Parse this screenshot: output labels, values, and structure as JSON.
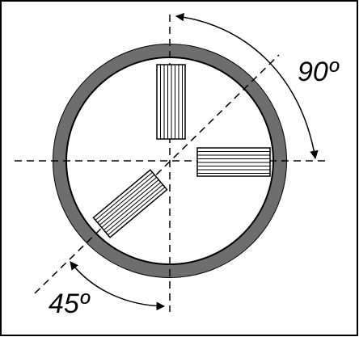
{
  "diagram": {
    "labels": {
      "angle_top": "90º",
      "angle_bottom": "45º"
    },
    "colors": {
      "ring": "#6e6e6e",
      "stroke": "#000000",
      "background": "#ffffff"
    }
  }
}
